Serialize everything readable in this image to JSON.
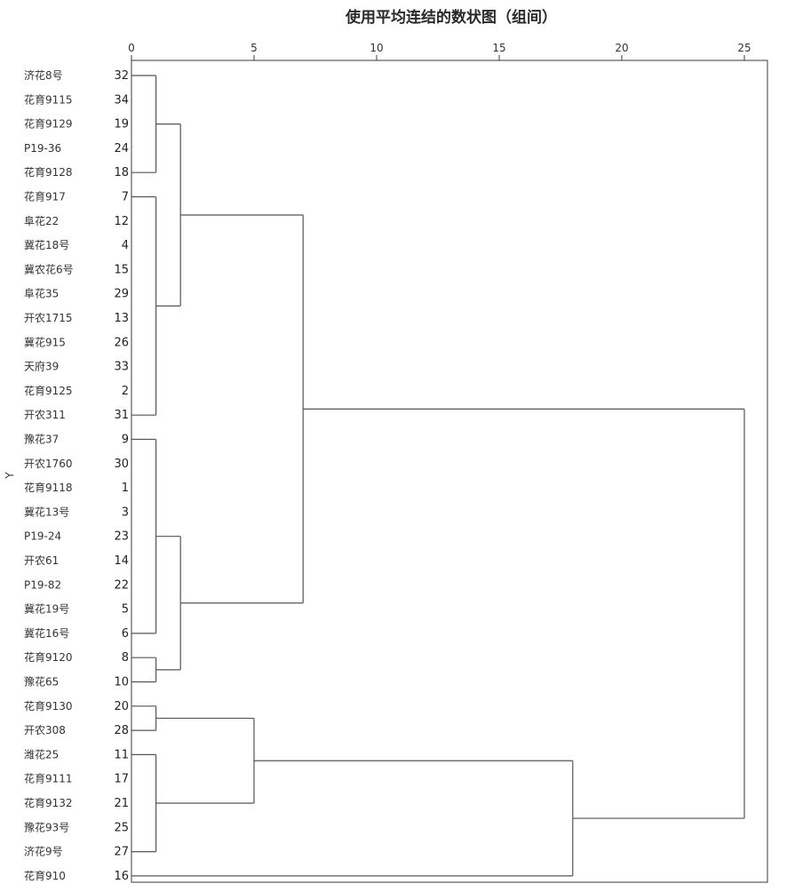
{
  "chart_data": {
    "type": "dendrogram",
    "title": "使用平均连结的数状图（组间）",
    "ylabel": "Y",
    "x_ticks": [
      0,
      5,
      10,
      15,
      20,
      25
    ],
    "xlim": [
      0,
      25
    ],
    "grid": false,
    "leaves": [
      {
        "name": "济花8号",
        "case": "32"
      },
      {
        "name": "花育9115",
        "case": "34"
      },
      {
        "name": "花育9129",
        "case": "19"
      },
      {
        "name": "P19-36",
        "case": "24"
      },
      {
        "name": "花育9128",
        "case": "18"
      },
      {
        "name": "花育917",
        "case": "7"
      },
      {
        "name": "阜花22",
        "case": "12"
      },
      {
        "name": "冀花18号",
        "case": "4"
      },
      {
        "name": "冀农花6号",
        "case": "15"
      },
      {
        "name": "阜花35",
        "case": "29"
      },
      {
        "name": "开农1715",
        "case": "13"
      },
      {
        "name": "冀花915",
        "case": "26"
      },
      {
        "name": "天府39",
        "case": "33"
      },
      {
        "name": "花育9125",
        "case": "2"
      },
      {
        "name": "开农311",
        "case": "31"
      },
      {
        "name": "豫花37",
        "case": "9"
      },
      {
        "name": "开农1760",
        "case": "30"
      },
      {
        "name": "花育9118",
        "case": "1"
      },
      {
        "name": "冀花13号",
        "case": "3"
      },
      {
        "name": "P19-24",
        "case": "23"
      },
      {
        "name": "开农61",
        "case": "14"
      },
      {
        "name": "P19-82",
        "case": "22"
      },
      {
        "name": "冀花19号",
        "case": "5"
      },
      {
        "name": "冀花16号",
        "case": "6"
      },
      {
        "name": "花育9120",
        "case": "8"
      },
      {
        "name": "豫花65",
        "case": "10"
      },
      {
        "name": "花育9130",
        "case": "20"
      },
      {
        "name": "开农308",
        "case": "28"
      },
      {
        "name": "潍花25",
        "case": "11"
      },
      {
        "name": "花育9111",
        "case": "17"
      },
      {
        "name": "花育9132",
        "case": "21"
      },
      {
        "name": "豫花93号",
        "case": "25"
      },
      {
        "name": "济花9号",
        "case": "27"
      },
      {
        "name": "花育910",
        "case": "16"
      }
    ],
    "merges": [
      {
        "children": [
          0,
          4
        ],
        "height": 1.0
      },
      {
        "children": [
          5,
          14
        ],
        "height": 1.0
      },
      {
        "children": [
          15,
          23
        ],
        "height": 1.0
      },
      {
        "children": [
          24,
          25
        ],
        "height": 1.0
      },
      {
        "children": [
          26,
          27
        ],
        "height": 1.0
      },
      {
        "children": [
          28,
          32
        ],
        "height": 1.0
      },
      {
        "children": [
          34,
          35
        ],
        "height": 2.0
      },
      {
        "children": [
          36,
          37
        ],
        "height": 2.0
      },
      {
        "children": [
          38,
          39
        ],
        "height": 5.0
      },
      {
        "children": [
          40,
          41
        ],
        "height": 7.0
      },
      {
        "children": [
          42,
          33
        ],
        "height": 18.0
      },
      {
        "children": [
          43,
          44
        ],
        "height": 25.0
      }
    ]
  },
  "colors": {
    "background": "#ffffff",
    "frame": "#3a3a3a",
    "link": "#555555",
    "text": "#333333"
  }
}
